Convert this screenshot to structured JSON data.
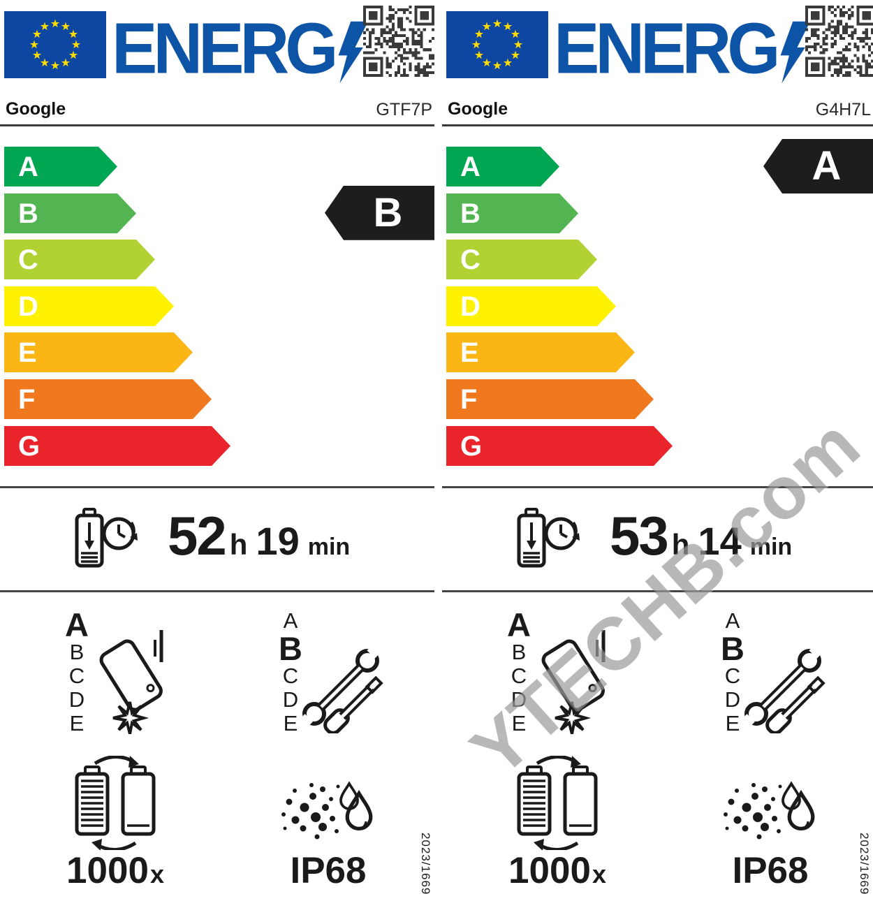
{
  "watermark": {
    "text": "YTECHB.com"
  },
  "scale": {
    "classes": [
      "A",
      "B",
      "C",
      "D",
      "E",
      "F",
      "G"
    ],
    "colors": [
      "#00a651",
      "#52b551",
      "#b1d233",
      "#fef200",
      "#fbb615",
      "#f0781f",
      "#e9242b"
    ],
    "indicator_color": "#1d1d1d"
  },
  "grade_scale": [
    "A",
    "B",
    "C",
    "D",
    "E"
  ],
  "labels": [
    {
      "logo": "ENERG",
      "brand": "Google",
      "model": "GTF7P",
      "energy_class": "B",
      "battery": {
        "hours": "52",
        "hours_unit": "h",
        "minutes": "19",
        "minutes_unit": "min"
      },
      "drop_class": "A",
      "repair_class": "B",
      "cycles": {
        "value": "1000",
        "unit": "x"
      },
      "ip_rating": "IP68",
      "regulation": "2023/1669"
    },
    {
      "logo": "ENERG",
      "brand": "Google",
      "model": "G4H7L",
      "energy_class": "A",
      "battery": {
        "hours": "53",
        "hours_unit": "h",
        "minutes": "14",
        "minutes_unit": "min"
      },
      "drop_class": "A",
      "repair_class": "B",
      "cycles": {
        "value": "1000",
        "unit": "x"
      },
      "ip_rating": "IP68",
      "regulation": "2023/1669"
    }
  ]
}
